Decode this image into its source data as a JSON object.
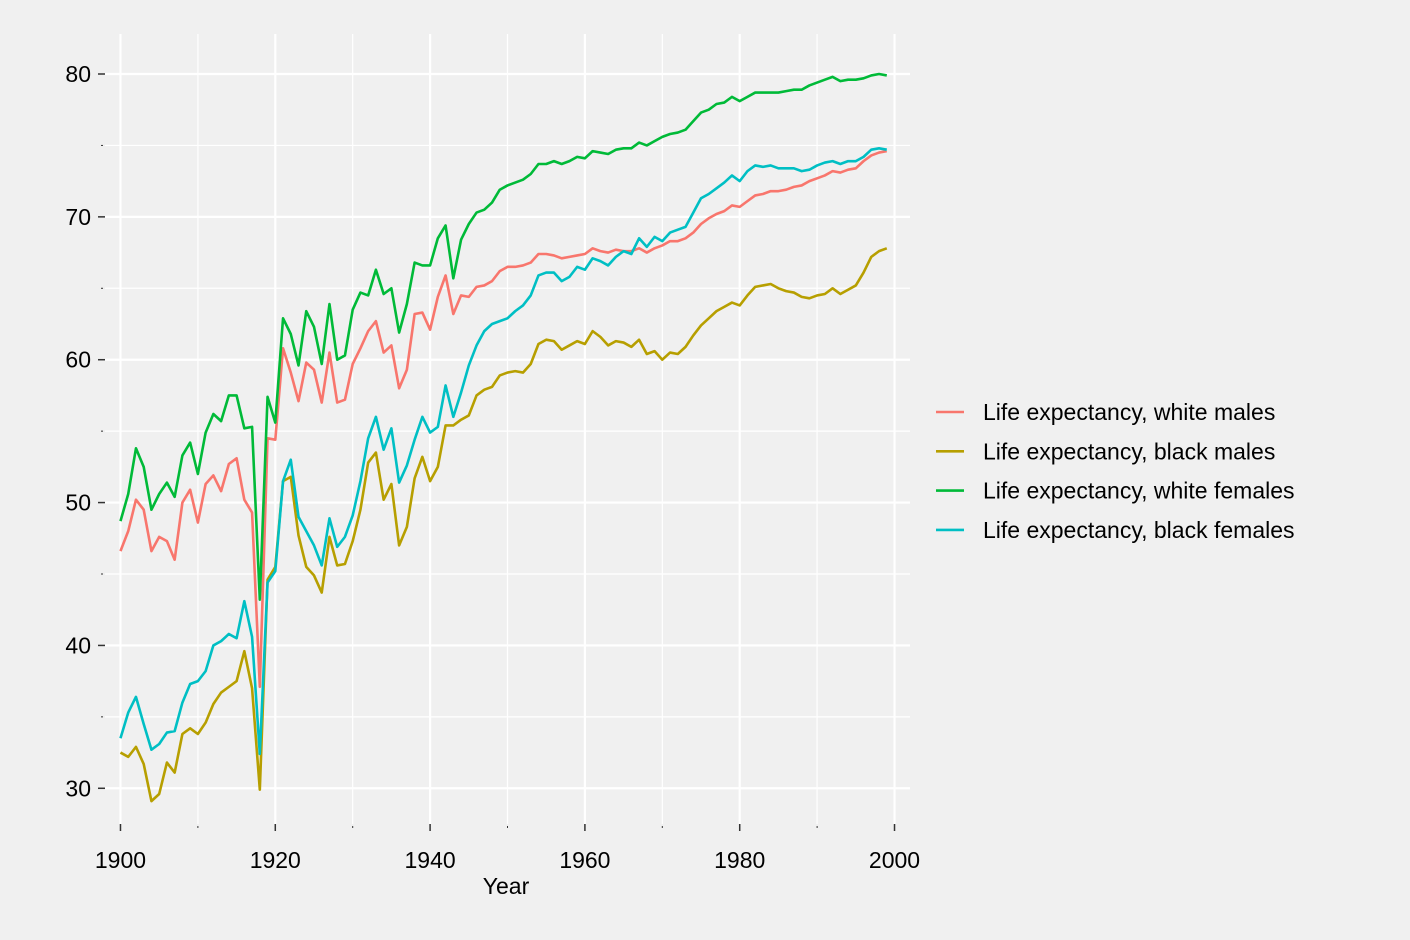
{
  "chart_data": {
    "type": "line",
    "title": "",
    "xlabel": "Year",
    "ylabel": "",
    "xlim": [
      1898,
      2002
    ],
    "ylim": [
      27.5,
      82.8
    ],
    "x_ticks": [
      1900,
      1920,
      1940,
      1960,
      1980,
      2000
    ],
    "y_ticks": [
      30,
      40,
      50,
      60,
      70,
      80
    ],
    "x_tick_labels": [
      "1900",
      "1920",
      "1940",
      "1960",
      "1980",
      "2000"
    ],
    "y_tick_labels": [
      "30",
      "40",
      "50",
      "60",
      "70",
      "80"
    ],
    "grid": true,
    "legend_position": "right",
    "background": "#f0f0f0",
    "grid_color": "#ffffff",
    "x": [
      1900,
      1901,
      1902,
      1903,
      1904,
      1905,
      1906,
      1907,
      1908,
      1909,
      1910,
      1911,
      1912,
      1913,
      1914,
      1915,
      1916,
      1917,
      1918,
      1919,
      1920,
      1921,
      1922,
      1923,
      1924,
      1925,
      1926,
      1927,
      1928,
      1929,
      1930,
      1931,
      1932,
      1933,
      1934,
      1935,
      1936,
      1937,
      1938,
      1939,
      1940,
      1941,
      1942,
      1943,
      1944,
      1945,
      1946,
      1947,
      1948,
      1949,
      1950,
      1951,
      1952,
      1953,
      1954,
      1955,
      1956,
      1957,
      1958,
      1959,
      1960,
      1961,
      1962,
      1963,
      1964,
      1965,
      1966,
      1967,
      1968,
      1969,
      1970,
      1971,
      1972,
      1973,
      1974,
      1975,
      1976,
      1977,
      1978,
      1979,
      1980,
      1981,
      1982,
      1983,
      1984,
      1985,
      1986,
      1987,
      1988,
      1989,
      1990,
      1991,
      1992,
      1993,
      1994,
      1995,
      1996,
      1997,
      1998,
      1999
    ],
    "series": [
      {
        "name": "Life expectancy, white males",
        "color": "#f8766d",
        "values": [
          46.6,
          48.0,
          50.2,
          49.5,
          46.6,
          47.6,
          47.3,
          46.0,
          50.0,
          50.9,
          48.6,
          51.3,
          51.9,
          50.8,
          52.7,
          53.1,
          50.2,
          49.3,
          37.1,
          54.5,
          54.4,
          60.8,
          59.1,
          57.1,
          59.8,
          59.3,
          57.0,
          60.5,
          57.0,
          57.2,
          59.7,
          60.8,
          62.0,
          62.7,
          60.5,
          61.0,
          58.0,
          59.3,
          63.2,
          63.3,
          62.1,
          64.4,
          65.9,
          63.2,
          64.5,
          64.4,
          65.1,
          65.2,
          65.5,
          66.2,
          66.5,
          66.5,
          66.6,
          66.8,
          67.4,
          67.4,
          67.3,
          67.1,
          67.2,
          67.3,
          67.4,
          67.8,
          67.6,
          67.5,
          67.7,
          67.6,
          67.6,
          67.8,
          67.5,
          67.8,
          68.0,
          68.3,
          68.3,
          68.5,
          68.9,
          69.5,
          69.9,
          70.2,
          70.4,
          70.8,
          70.7,
          71.1,
          71.5,
          71.6,
          71.8,
          71.8,
          71.9,
          72.1,
          72.2,
          72.5,
          72.7,
          72.9,
          73.2,
          73.1,
          73.3,
          73.4,
          73.9,
          74.3,
          74.5,
          74.6
        ]
      },
      {
        "name": "Life expectancy, black males",
        "color": "#b79f00",
        "values": [
          32.5,
          32.2,
          32.9,
          31.7,
          29.1,
          29.6,
          31.8,
          31.1,
          33.8,
          34.2,
          33.8,
          34.6,
          35.9,
          36.7,
          37.1,
          37.5,
          39.6,
          37.0,
          29.9,
          44.6,
          45.5,
          51.5,
          51.8,
          47.7,
          45.5,
          44.9,
          43.7,
          47.6,
          45.6,
          45.7,
          47.3,
          49.5,
          52.8,
          53.5,
          50.2,
          51.3,
          47.0,
          48.3,
          51.7,
          53.2,
          51.5,
          52.5,
          55.4,
          55.4,
          55.8,
          56.1,
          57.5,
          57.9,
          58.1,
          58.9,
          59.1,
          59.2,
          59.1,
          59.7,
          61.1,
          61.4,
          61.3,
          60.7,
          61.0,
          61.3,
          61.1,
          62.0,
          61.6,
          61.0,
          61.3,
          61.2,
          60.9,
          61.4,
          60.4,
          60.6,
          60.0,
          60.5,
          60.4,
          60.9,
          61.7,
          62.4,
          62.9,
          63.4,
          63.7,
          64.0,
          63.8,
          64.5,
          65.1,
          65.2,
          65.3,
          65.0,
          64.8,
          64.7,
          64.4,
          64.3,
          64.5,
          64.6,
          65.0,
          64.6,
          64.9,
          65.2,
          66.1,
          67.2,
          67.6,
          67.8
        ]
      },
      {
        "name": "Life expectancy, white females",
        "color": "#00ba38",
        "values": [
          48.7,
          50.6,
          53.8,
          52.5,
          49.5,
          50.6,
          51.4,
          50.4,
          53.3,
          54.2,
          52.0,
          54.9,
          56.2,
          55.7,
          57.5,
          57.5,
          55.2,
          55.3,
          43.2,
          57.4,
          55.6,
          62.9,
          61.8,
          59.6,
          63.4,
          62.3,
          59.7,
          63.9,
          60.0,
          60.3,
          63.5,
          64.7,
          64.5,
          66.3,
          64.6,
          65.0,
          61.9,
          63.9,
          66.8,
          66.6,
          66.6,
          68.5,
          69.4,
          65.7,
          68.4,
          69.5,
          70.3,
          70.5,
          71.0,
          71.9,
          72.2,
          72.4,
          72.6,
          73.0,
          73.7,
          73.7,
          73.9,
          73.7,
          73.9,
          74.2,
          74.1,
          74.6,
          74.5,
          74.4,
          74.7,
          74.8,
          74.8,
          75.2,
          75.0,
          75.3,
          75.6,
          75.8,
          75.9,
          76.1,
          76.7,
          77.3,
          77.5,
          77.9,
          78.0,
          78.4,
          78.1,
          78.4,
          78.7,
          78.7,
          78.7,
          78.7,
          78.8,
          78.9,
          78.9,
          79.2,
          79.4,
          79.6,
          79.8,
          79.5,
          79.6,
          79.6,
          79.7,
          79.9,
          80.0,
          79.9
        ]
      },
      {
        "name": "Life expectancy, black females",
        "color": "#00bfc4",
        "values": [
          33.5,
          35.3,
          36.4,
          34.5,
          32.7,
          33.1,
          33.9,
          34.0,
          36.0,
          37.3,
          37.5,
          38.2,
          40.0,
          40.3,
          40.8,
          40.5,
          43.1,
          40.6,
          32.4,
          44.4,
          45.2,
          51.5,
          53.0,
          49.0,
          48.0,
          47.0,
          45.6,
          48.9,
          46.9,
          47.6,
          49.1,
          51.5,
          54.5,
          56.0,
          53.7,
          55.2,
          51.4,
          52.6,
          54.4,
          56.0,
          54.9,
          55.3,
          58.2,
          56.0,
          57.7,
          59.6,
          61.0,
          62.0,
          62.5,
          62.7,
          62.9,
          63.4,
          63.8,
          64.5,
          65.9,
          66.1,
          66.1,
          65.5,
          65.8,
          66.5,
          66.3,
          67.1,
          66.9,
          66.6,
          67.2,
          67.6,
          67.4,
          68.5,
          67.9,
          68.6,
          68.3,
          68.9,
          69.1,
          69.3,
          70.3,
          71.3,
          71.6,
          72.0,
          72.4,
          72.9,
          72.5,
          73.2,
          73.6,
          73.5,
          73.6,
          73.4,
          73.4,
          73.4,
          73.2,
          73.3,
          73.6,
          73.8,
          73.9,
          73.7,
          73.9,
          73.9,
          74.2,
          74.7,
          74.8,
          74.7
        ]
      }
    ]
  }
}
